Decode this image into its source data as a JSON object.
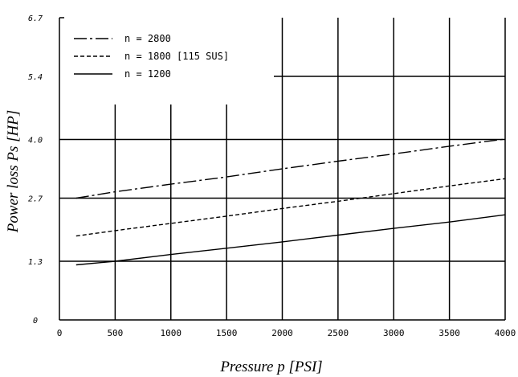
{
  "chart_data": {
    "type": "line",
    "xlabel": "Pressure p [PSI]",
    "ylabel": "Power loss Ps [HP]",
    "x_ticks": [
      "0",
      "500",
      "1000",
      "1500",
      "2000",
      "2500",
      "3000",
      "3500",
      "4000"
    ],
    "y_ticks": [
      "0",
      "1.3",
      "2.7",
      "4.0",
      "5.4",
      "6.7"
    ],
    "xlim": [
      0,
      4000
    ],
    "ylim": [
      0,
      6.7
    ],
    "legend_position": "top-left",
    "series": [
      {
        "name": "n = 2800",
        "dash": "long-dash",
        "x": [
          150,
          500,
          1000,
          1500,
          2000,
          2500,
          3000,
          3500,
          4000
        ],
        "y": [
          2.7,
          2.84,
          3.01,
          3.17,
          3.35,
          3.52,
          3.68,
          3.85,
          4.01
        ]
      },
      {
        "name": "n = 1800 [115 SUS]",
        "dash": "short-dash",
        "x": [
          150,
          500,
          1000,
          1500,
          2000,
          2500,
          3000,
          3500,
          4000
        ],
        "y": [
          1.86,
          1.98,
          2.14,
          2.3,
          2.47,
          2.63,
          2.8,
          2.97,
          3.13
        ]
      },
      {
        "name": "n = 1200",
        "dash": "solid",
        "x": [
          150,
          500,
          1000,
          1500,
          2000,
          2500,
          3000,
          3500,
          4000
        ],
        "y": [
          1.22,
          1.3,
          1.45,
          1.59,
          1.73,
          1.88,
          2.03,
          2.17,
          2.33
        ]
      }
    ]
  }
}
